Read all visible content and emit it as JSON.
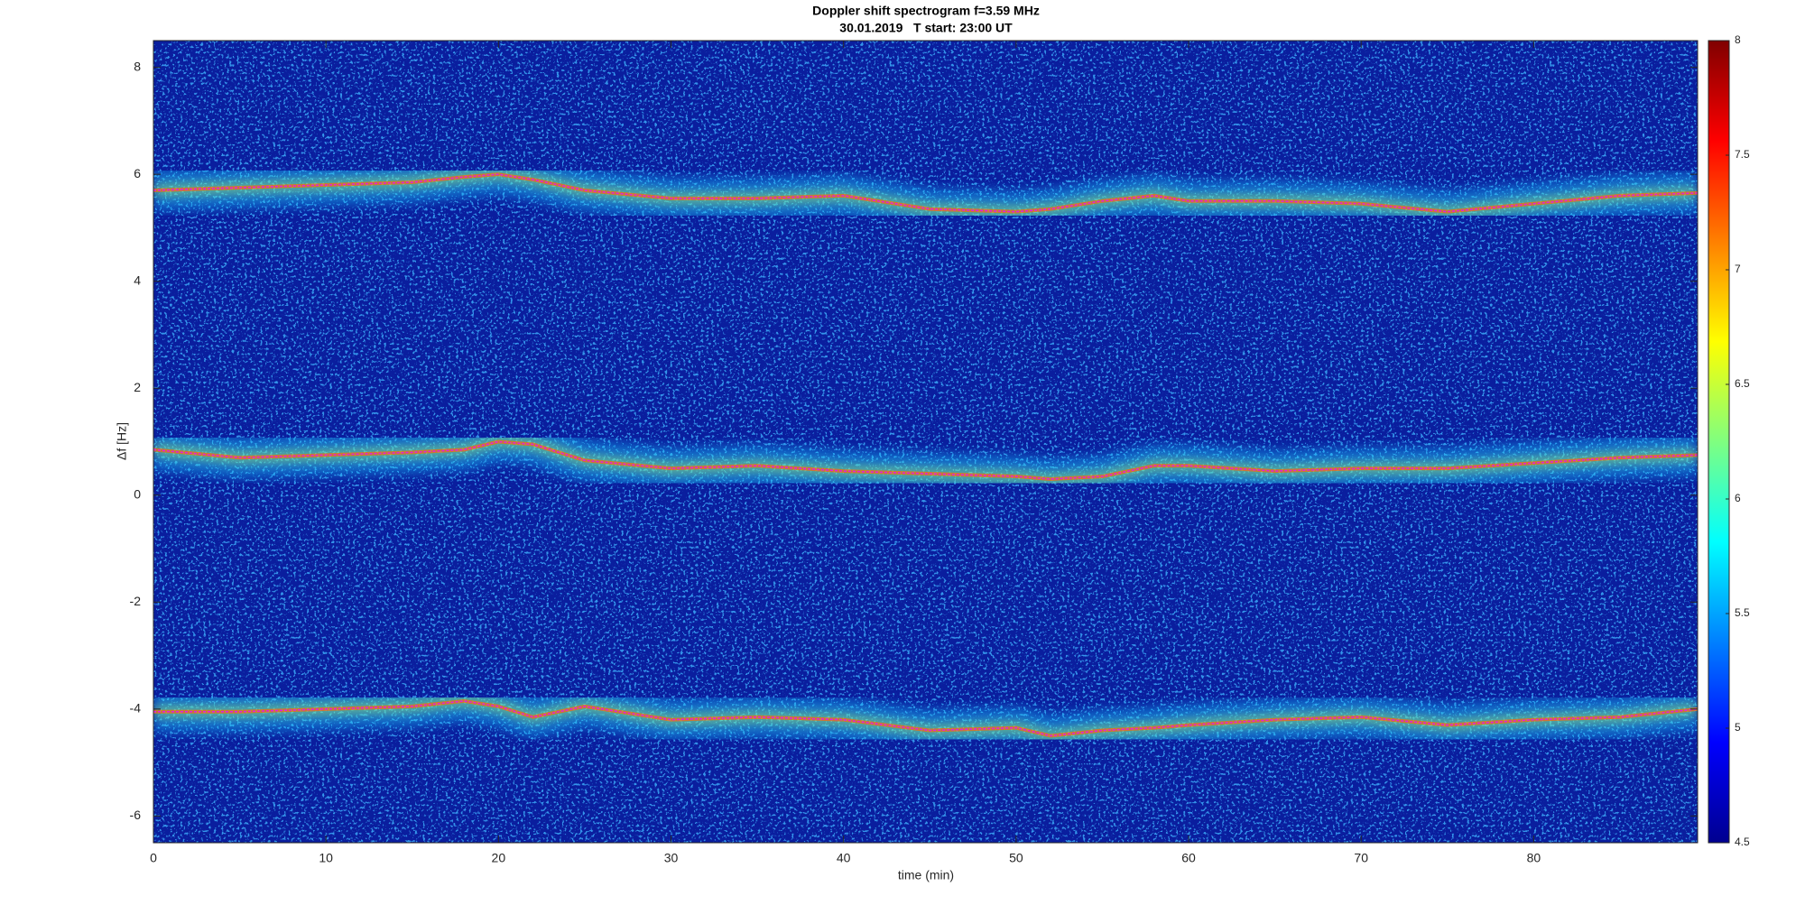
{
  "chart_data": {
    "type": "spectrogram",
    "title": "Doppler shift spectrogram f=3.59 MHz",
    "subtitle": "30.01.2019   T start: 23:00 UT",
    "x_label": "time (min)",
    "y_label": "Δf [Hz]",
    "xlim": [
      0,
      89.5
    ],
    "xticks": [
      0,
      10,
      20,
      30,
      40,
      50,
      60,
      70,
      80
    ],
    "ylim": [
      -6.5,
      8.5
    ],
    "yticks": [
      -6,
      -4,
      -2,
      0,
      2,
      4,
      6,
      8
    ],
    "colorbar": {
      "lim": [
        4.5,
        8
      ],
      "ticks": [
        4.5,
        5,
        5.5,
        6,
        6.5,
        7,
        7.5,
        8
      ]
    },
    "x": [
      0,
      5,
      10,
      15,
      18,
      20,
      22,
      25,
      30,
      35,
      40,
      45,
      50,
      52,
      55,
      58,
      60,
      65,
      70,
      75,
      80,
      85,
      89.5
    ],
    "series": [
      {
        "color": "#e020e0",
        "values": [
          5.7,
          5.75,
          5.8,
          5.85,
          5.95,
          6.0,
          5.9,
          5.7,
          5.55,
          5.55,
          5.6,
          5.35,
          5.3,
          5.35,
          5.5,
          5.6,
          5.5,
          5.5,
          5.45,
          5.3,
          5.45,
          5.6,
          5.65
        ]
      },
      {
        "color": "#e020e0",
        "values": [
          0.85,
          0.7,
          0.75,
          0.8,
          0.85,
          1.0,
          0.95,
          0.65,
          0.5,
          0.55,
          0.45,
          0.4,
          0.35,
          0.3,
          0.35,
          0.55,
          0.55,
          0.45,
          0.5,
          0.5,
          0.6,
          0.7,
          0.75
        ]
      },
      {
        "color": "#e020e0",
        "values": [
          -4.05,
          -4.05,
          -4.0,
          -3.95,
          -3.85,
          -3.95,
          -4.15,
          -3.95,
          -4.2,
          -4.15,
          -4.2,
          -4.4,
          -4.35,
          -4.5,
          -4.4,
          -4.35,
          -4.3,
          -4.2,
          -4.15,
          -4.3,
          -4.2,
          -4.15,
          -4.0
        ]
      }
    ]
  }
}
